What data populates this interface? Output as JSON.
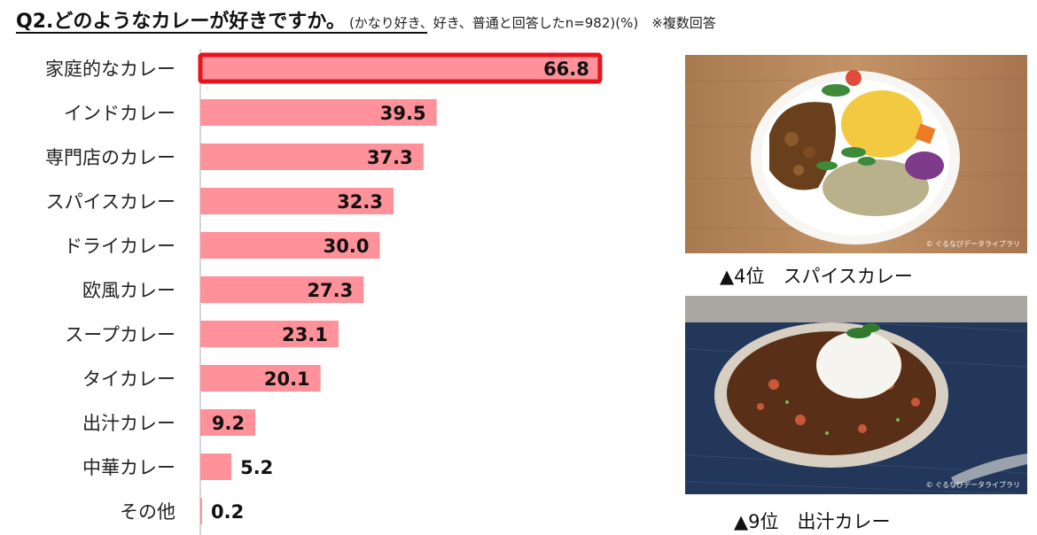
{
  "header": {
    "question": "Q2.どのようなカレーが好きですか。",
    "note": "(かなり好き、好き、普通と回答したn=982)(%)　※複数回答"
  },
  "chart_data": {
    "type": "bar",
    "orientation": "horizontal",
    "categories": [
      "家庭的なカレー",
      "インドカレー",
      "専門店のカレー",
      "スパイスカレー",
      "ドライカレー",
      "欧風カレー",
      "スープカレー",
      "タイカレー",
      "出汁カレー",
      "中華カレー",
      "その他"
    ],
    "values": [
      66.8,
      39.5,
      37.3,
      32.3,
      30.0,
      27.3,
      23.1,
      20.1,
      9.2,
      5.2,
      0.2
    ],
    "value_labels": [
      "66.8",
      "39.5",
      "37.3",
      "32.3",
      "30.0",
      "27.3",
      "23.1",
      "20.1",
      "9.2",
      "5.2",
      "0.2"
    ],
    "highlight_index": 0,
    "xlim": [
      0,
      70
    ],
    "bar_color": "#fe9199",
    "highlight_border_color": "#e8141b",
    "axis_color": "#c8c8c8"
  },
  "photos": [
    {
      "caption": "▲4位　スパイスカレー",
      "credit": "© ぐるなびデータライブラリ"
    },
    {
      "caption": "▲9位　出汁カレー",
      "credit": "© ぐるなびデータライブラリ"
    }
  ]
}
